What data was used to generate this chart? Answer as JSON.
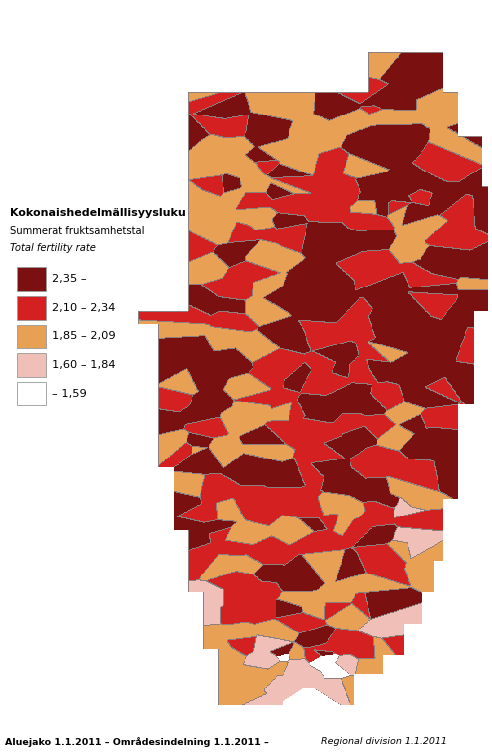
{
  "title_fi": "Kokonaishedelmällisyysluku",
  "title_sv": "Summerat fruktsamhetstal",
  "title_en": "Total fertility rate",
  "footer_bold": "Aluejako 1.1.2011 – Områdesindelning 1.1.2011 –",
  "footer_italic": "  Regional division 1.1.2011",
  "legend_labels": [
    "2,35 –",
    "2,10 – 2,34",
    "1,85 – 2,09",
    "1,60 – 1,84",
    "– 1,59"
  ],
  "legend_colors": [
    "#7B1010",
    "#D42020",
    "#E8A055",
    "#EFBFB8",
    "#FFFFFF"
  ],
  "legend_edge": "#999999",
  "bg_color": "#FFFFFF",
  "dpi": 100,
  "figsize": [
    4.92,
    7.54
  ]
}
